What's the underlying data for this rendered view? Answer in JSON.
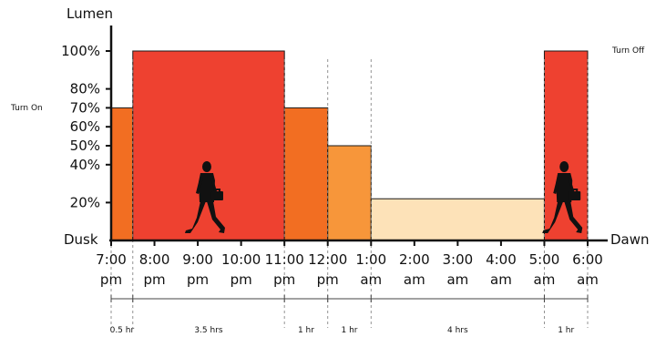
{
  "chart_data": {
    "type": "area",
    "ylabel": "Lumen",
    "x_start_label": "Dusk",
    "x_end_label": "Dawn",
    "turn_on_label": "Turn On",
    "turn_off_label": "Turn Off",
    "yticks": [
      "20%",
      "40%",
      "50%",
      "60%",
      "70%",
      "80%",
      "100%"
    ],
    "ytick_values": [
      20,
      40,
      50,
      60,
      70,
      80,
      100
    ],
    "ylim": [
      0,
      100
    ],
    "xlim": [
      0,
      11
    ],
    "xticks": [
      {
        "t": 0,
        "line1": "7:00",
        "line2": "pm"
      },
      {
        "t": 1,
        "line1": "8:00",
        "line2": "pm"
      },
      {
        "t": 2,
        "line1": "9:00",
        "line2": "pm"
      },
      {
        "t": 3,
        "line1": "10:00",
        "line2": "pm"
      },
      {
        "t": 4,
        "line1": "11:00",
        "line2": "pm"
      },
      {
        "t": 5,
        "line1": "12:00",
        "line2": "pm"
      },
      {
        "t": 6,
        "line1": "1:00",
        "line2": "am"
      },
      {
        "t": 7,
        "line1": "2:00",
        "line2": "am"
      },
      {
        "t": 8,
        "line1": "3:00",
        "line2": "am"
      },
      {
        "t": 9,
        "line1": "4:00",
        "line2": "am"
      },
      {
        "t": 10,
        "line1": "5:00",
        "line2": "am"
      },
      {
        "t": 11,
        "line1": "6:00",
        "line2": "am"
      }
    ],
    "segments": [
      {
        "start": 0,
        "end": 0.5,
        "value": 70,
        "color": "#F26E22",
        "duration": "0.5 hr"
      },
      {
        "start": 0.5,
        "end": 4,
        "value": 100,
        "color": "#EE4130",
        "duration": "3.5 hrs"
      },
      {
        "start": 4,
        "end": 5,
        "value": 70,
        "color": "#F26E22",
        "duration": "1 hr"
      },
      {
        "start": 5,
        "end": 6,
        "value": 50,
        "color": "#F7963A",
        "duration": "1 hr"
      },
      {
        "start": 6,
        "end": 10,
        "value": 22,
        "color": "#FDE2B8",
        "duration": "4 hrs"
      },
      {
        "start": 10,
        "end": 11,
        "value": 100,
        "color": "#EE4130",
        "duration": "1 hr"
      }
    ],
    "walker_icons": [
      {
        "t": 2.25,
        "name": "walking-man-icon"
      },
      {
        "t": 10.5,
        "name": "walking-man-icon"
      }
    ]
  }
}
